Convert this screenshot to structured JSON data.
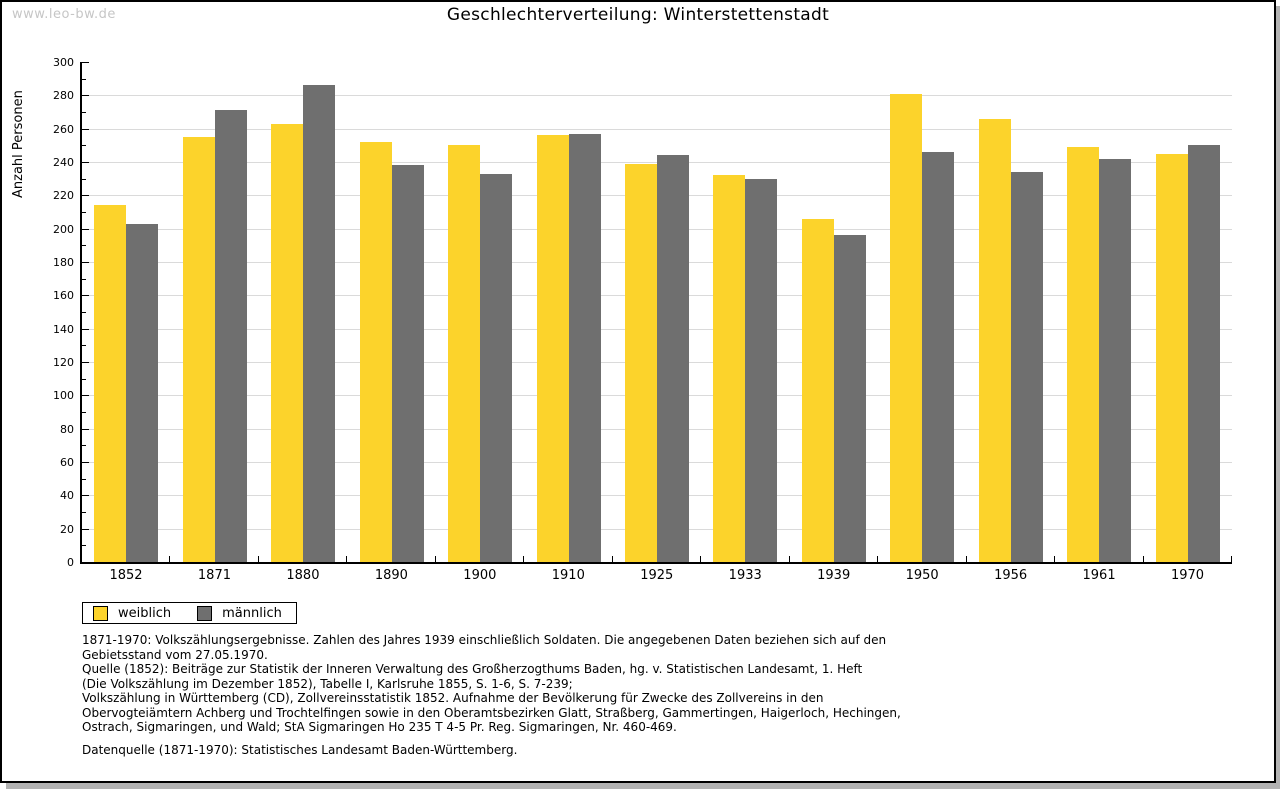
{
  "watermark": "www.leo-bw.de",
  "title": "Geschlechterverteilung: Winterstettenstadt",
  "colors": {
    "female_bar": "#fcd32b",
    "male_bar": "#6f6f6f",
    "gridline": "#dadada",
    "axis": "#000000",
    "watermark": "#c6c6c6"
  },
  "chart_data": {
    "type": "bar",
    "title": "Geschlechterverteilung: Winterstettenstadt",
    "xlabel": "",
    "ylabel": "Anzahl Personen",
    "ylim": [
      0,
      300
    ],
    "ytick_step": 20,
    "y_minor_step": 10,
    "grid": true,
    "legend_position": "bottom-left",
    "categories": [
      "1852",
      "1871",
      "1880",
      "1890",
      "1900",
      "1910",
      "1925",
      "1933",
      "1939",
      "1950",
      "1956",
      "1961",
      "1970"
    ],
    "series": [
      {
        "name": "weiblich",
        "color": "#fcd32b",
        "values": [
          214,
          255,
          263,
          252,
          250,
          256,
          239,
          232,
          206,
          281,
          266,
          249,
          245
        ]
      },
      {
        "name": "männlich",
        "color": "#6f6f6f",
        "values": [
          203,
          271,
          286,
          238,
          233,
          257,
          244,
          230,
          196,
          246,
          234,
          242,
          250
        ]
      }
    ]
  },
  "legend": {
    "items": [
      {
        "label": "weiblich",
        "color": "#fcd32b"
      },
      {
        "label": "männlich",
        "color": "#6f6f6f"
      }
    ]
  },
  "footer": {
    "source_lines": [
      "1871-1970: Volkszählungsergebnisse. Zahlen des Jahres 1939 einschließlich Soldaten. Die angegebenen Daten beziehen sich auf den",
      "Gebietsstand vom 27.05.1970.",
      "Quelle (1852): Beiträge zur Statistik der Inneren Verwaltung des Großherzogthums Baden, hg. v. Statistischen Landesamt, 1. Heft",
      "(Die Volkszählung im Dezember 1852), Tabelle I, Karlsruhe 1855, S. 1-6, S. 7-239;",
      "Volkszählung in Württemberg (CD), Zollvereinsstatistik 1852. Aufnahme der Bevölkerung für Zwecke des Zollvereins in den",
      "Obervogteiämtern Achberg und Trochtelfingen sowie in den Oberamtsbezirken Glatt, Straßberg, Gammertingen, Haigerloch, Hechingen,",
      "Ostrach, Sigmaringen, und Wald; StA Sigmaringen Ho 235 T 4-5 Pr. Reg. Sigmaringen, Nr. 460-469."
    ],
    "datasource_line": "Datenquelle (1871-1970): Statistisches Landesamt Baden-Württemberg."
  }
}
